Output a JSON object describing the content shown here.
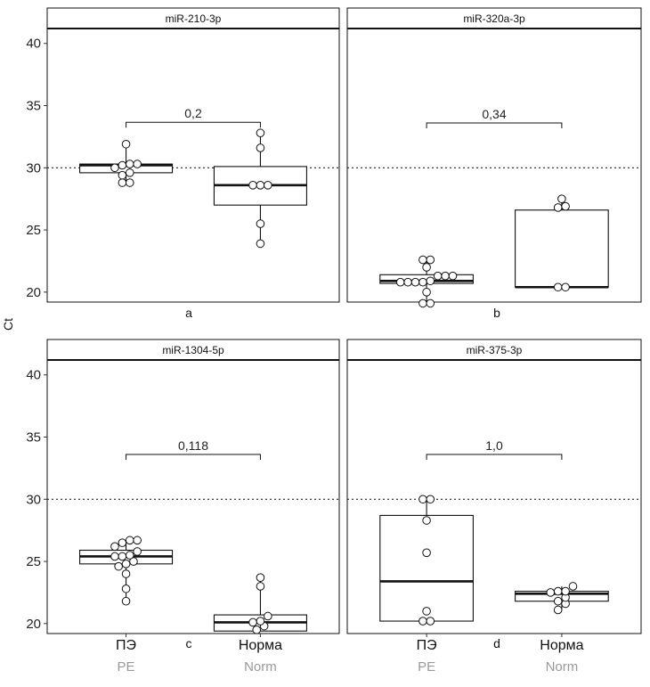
{
  "chart_data": {
    "type": "box",
    "ylabel": "Ct",
    "threshold": 30,
    "yticks": [
      20,
      25,
      30,
      35,
      40
    ],
    "categories": [
      "ПЭ",
      "Норма"
    ],
    "categories_en": [
      "PE",
      "Norm"
    ],
    "panels": [
      {
        "title": "miR-210-3p",
        "letter": "a",
        "pvalue": "0,2",
        "ylim": [
          19.2,
          41.2
        ],
        "groups": [
          {
            "category": "ПЭ",
            "box": {
              "q1": 29.6,
              "median": 30.2,
              "q3": 30.3,
              "low": 28.8,
              "high": 31.9
            },
            "points": [
              28.8,
              28.8,
              29.4,
              29.6,
              30.0,
              30.2,
              30.3,
              30.3,
              31.9
            ]
          },
          {
            "category": "Норма",
            "box": {
              "q1": 27.0,
              "median": 28.6,
              "q3": 30.1,
              "low": 23.9,
              "high": 32.8
            },
            "points": [
              23.9,
              25.5,
              28.6,
              28.6,
              28.6,
              31.6,
              32.8
            ]
          }
        ]
      },
      {
        "title": "miR-320a-3p",
        "letter": "b",
        "pvalue": "0,34",
        "ylim": [
          19.2,
          41.2
        ],
        "groups": [
          {
            "category": "ПЭ",
            "box": {
              "q1": 20.7,
              "median": 20.9,
              "q3": 21.4,
              "low": 19.2,
              "high": 22.6
            },
            "points": [
              19.1,
              19.1,
              20.0,
              20.8,
              20.8,
              20.8,
              20.8,
              20.9,
              21.3,
              21.3,
              21.3,
              22.0,
              22.6,
              22.6
            ]
          },
          {
            "category": "Норма",
            "box": {
              "q1": 20.4,
              "median": 20.4,
              "q3": 26.6,
              "low": 20.4,
              "high": 27.5
            },
            "points": [
              20.4,
              20.4,
              26.8,
              26.9,
              27.5
            ]
          }
        ]
      },
      {
        "title": "miR-1304-5p",
        "letter": "c",
        "pvalue": "0,118",
        "ylim": [
          19.2,
          41.2
        ],
        "groups": [
          {
            "category": "ПЭ",
            "box": {
              "q1": 24.8,
              "median": 25.4,
              "q3": 25.9,
              "low": 21.8,
              "high": 26.7
            },
            "points": [
              21.8,
              22.8,
              24.0,
              24.6,
              24.8,
              25.0,
              25.4,
              25.4,
              25.5,
              25.8,
              26.2,
              26.5,
              26.7,
              26.7
            ]
          },
          {
            "category": "Норма",
            "box": {
              "q1": 19.4,
              "median": 20.1,
              "q3": 20.7,
              "low": 19.4,
              "high": 23.7
            },
            "points": [
              19.5,
              19.8,
              20.1,
              20.2,
              20.6,
              23.0,
              23.7
            ]
          }
        ]
      },
      {
        "title": "miR-375-3p",
        "letter": "d",
        "pvalue": "1,0",
        "ylim": [
          19.2,
          41.2
        ],
        "groups": [
          {
            "category": "ПЭ",
            "box": {
              "q1": 20.2,
              "median": 23.4,
              "q3": 28.7,
              "low": 20.2,
              "high": 30.0
            },
            "points": [
              20.2,
              20.2,
              21.0,
              25.7,
              28.3,
              30.0,
              30.0
            ]
          },
          {
            "category": "Норма",
            "box": {
              "q1": 21.8,
              "median": 22.4,
              "q3": 22.6,
              "low": 21.1,
              "high": 23.0
            },
            "points": [
              21.1,
              21.6,
              21.8,
              22.1,
              22.5,
              22.6,
              22.6,
              23.0
            ]
          }
        ]
      }
    ]
  }
}
